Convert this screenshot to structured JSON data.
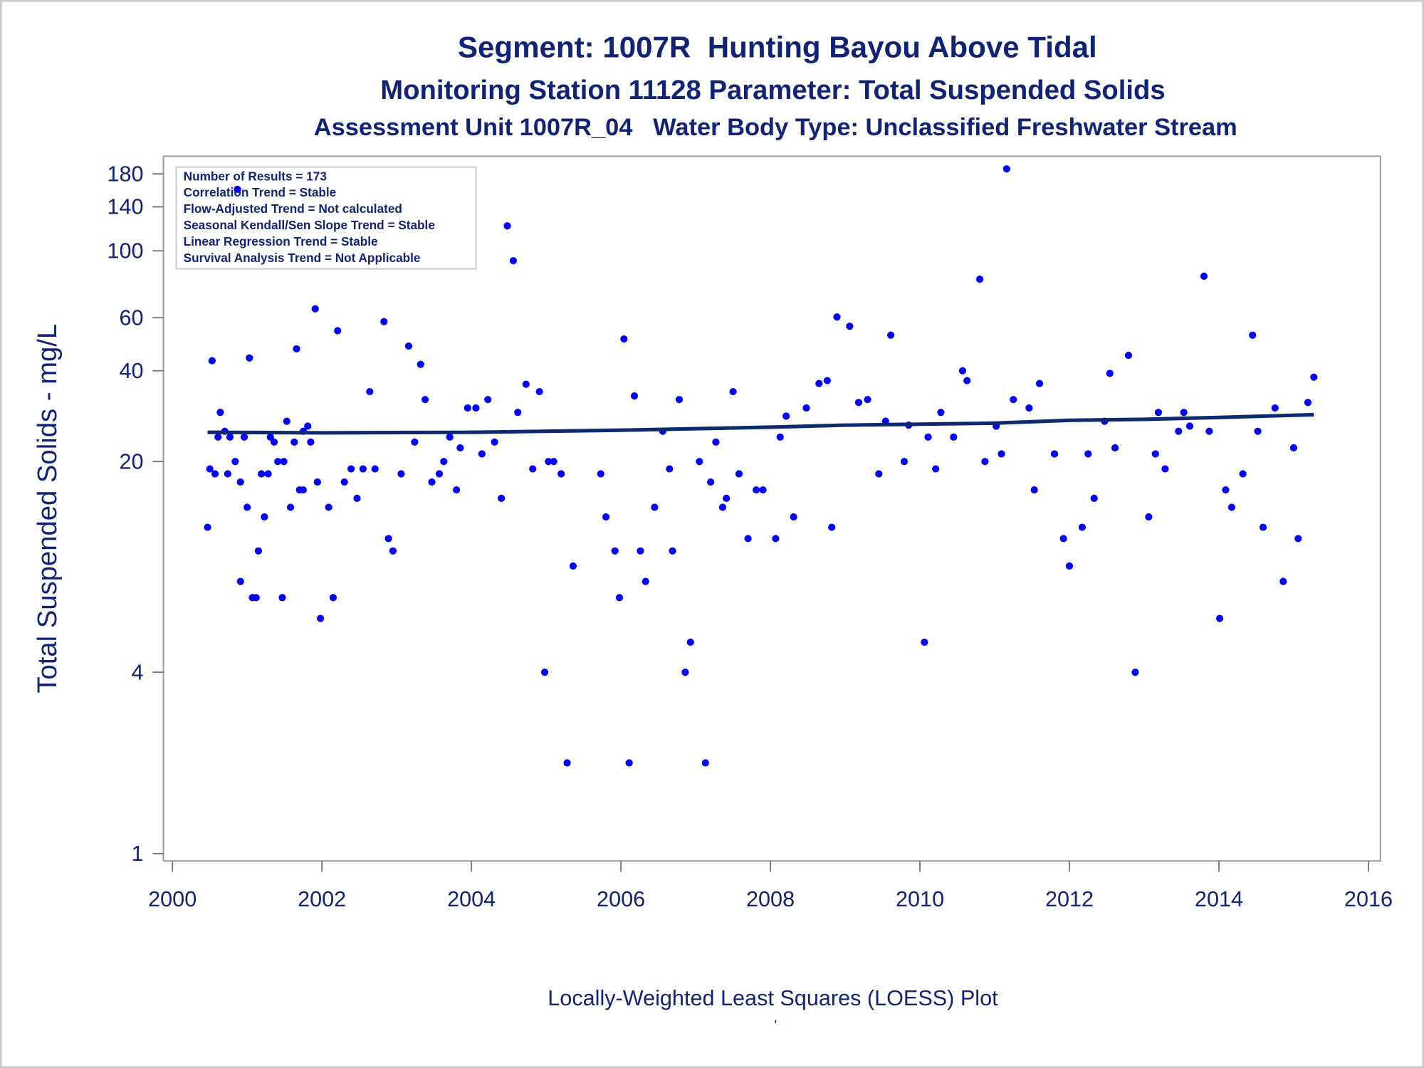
{
  "chart_data": {
    "type": "scatter",
    "title": "Segment: 1007R  Hunting Bayou Above Tidal",
    "subtitle": "Monitoring Station 11128 Parameter: Total Suspended Solids",
    "subtitle2": "Assessment Unit 1007R_04   Water Body Type: Unclassified Freshwater Stream",
    "annotations": [
      "Number of Results = 173",
      "Correlation Trend = Stable",
      "Flow-Adjusted Trend = Not calculated",
      "Seasonal Kendall/Sen Slope Trend = Stable",
      "Linear Regression Trend = Stable",
      "Survival Analysis Trend = Not Applicable"
    ],
    "y_label": "Total Suspended Solids - mg/L",
    "footnote": "Locally-Weighted Least Squares (LOESS) Plot",
    "footnote_mark": "'",
    "ylog": true,
    "grid": false,
    "xlim": [
      1999.88,
      2016.16
    ],
    "xticks": [
      2000,
      2002,
      2004,
      2006,
      2008,
      2010,
      2012,
      2014,
      2016
    ],
    "ylim": [
      0.946,
      206
    ],
    "yticks": [
      1,
      4,
      20,
      40,
      60,
      100,
      140,
      180
    ],
    "series": [
      {
        "type": "scatter",
        "color": "#0000ff",
        "x": [
          2000.47,
          2000.5,
          2000.53,
          2000.57,
          2000.61,
          2000.64,
          2000.7,
          2000.74,
          2000.77,
          2000.84,
          2000.87,
          2000.91,
          2000.91,
          2000.96,
          2001.0,
          2001.03,
          2001.07,
          2001.12,
          2001.15,
          2001.19,
          2001.23,
          2001.28,
          2001.31,
          2001.36,
          2001.41,
          2001.47,
          2001.49,
          2001.53,
          2001.58,
          2001.63,
          2001.66,
          2001.7,
          2001.75,
          2001.75,
          2001.81,
          2001.85,
          2001.91,
          2001.94,
          2001.98,
          2002.09,
          2002.15,
          2002.21,
          2002.3,
          2002.39,
          2002.47,
          2002.55,
          2002.64,
          2002.71,
          2002.83,
          2002.89,
          2002.95,
          2003.06,
          2003.16,
          2003.24,
          2003.32,
          2003.38,
          2003.47,
          2003.57,
          2003.63,
          2003.71,
          2003.8,
          2003.85,
          2003.95,
          2004.06,
          2004.14,
          2004.22,
          2004.31,
          2004.4,
          2004.48,
          2004.56,
          2004.62,
          2004.73,
          2004.82,
          2004.91,
          2004.98,
          2005.03,
          2005.1,
          2005.2,
          2005.28,
          2005.36,
          2005.73,
          2005.8,
          2005.92,
          2005.98,
          2006.04,
          2006.11,
          2006.18,
          2006.26,
          2006.33,
          2006.45,
          2006.56,
          2006.65,
          2006.69,
          2006.78,
          2006.86,
          2006.93,
          2007.05,
          2007.13,
          2007.2,
          2007.27,
          2007.36,
          2007.41,
          2007.5,
          2007.58,
          2007.7,
          2007.81,
          2007.9,
          2008.07,
          2008.13,
          2008.21,
          2008.31,
          2008.48,
          2008.65,
          2008.76,
          2008.82,
          2008.89,
          2009.06,
          2009.18,
          2009.3,
          2009.45,
          2009.54,
          2009.61,
          2009.79,
          2009.85,
          2010.06,
          2010.11,
          2010.21,
          2010.28,
          2010.45,
          2010.57,
          2010.63,
          2010.8,
          2010.87,
          2011.02,
          2011.09,
          2011.16,
          2011.25,
          2011.46,
          2011.53,
          2011.6,
          2011.8,
          2011.92,
          2012.0,
          2012.17,
          2012.25,
          2012.33,
          2012.47,
          2012.54,
          2012.61,
          2012.79,
          2012.88,
          2013.06,
          2013.15,
          2013.19,
          2013.28,
          2013.46,
          2013.53,
          2013.61,
          2013.8,
          2013.87,
          2014.01,
          2014.09,
          2014.17,
          2014.32,
          2014.45,
          2014.52,
          2014.59,
          2014.75,
          2014.86,
          2015.0,
          2015.06,
          2015.19,
          2015.27
        ],
        "values": [
          12.1,
          18.9,
          43.2,
          18.2,
          24.1,
          29.1,
          25.2,
          18.2,
          24.1,
          20,
          160,
          17.1,
          8.0,
          24.1,
          14.1,
          44.1,
          7.07,
          7.07,
          10.1,
          18.2,
          13.1,
          18.2,
          24.1,
          23.2,
          20,
          7.07,
          20,
          27.2,
          14.1,
          23.2,
          47.3,
          16.1,
          16.1,
          25.2,
          26.2,
          23.2,
          64.2,
          17.1,
          6.03,
          14.1,
          7.07,
          54.3,
          17.1,
          18.9,
          15.1,
          18.9,
          34.1,
          18.9,
          58.2,
          11.1,
          10.1,
          18.2,
          48.3,
          23.2,
          42.0,
          32.1,
          17.1,
          18.2,
          20,
          24.1,
          16.1,
          22.2,
          30.1,
          30.1,
          21.2,
          32.1,
          23.2,
          15.1,
          121,
          92.7,
          29.1,
          36.1,
          18.9,
          34.1,
          4,
          20,
          20,
          18.2,
          2.0,
          9.0,
          18.2,
          13.1,
          10.1,
          7.07,
          51.0,
          2.0,
          33.0,
          10.1,
          8.0,
          14.1,
          25.2,
          18.9,
          10.1,
          32.1,
          4,
          5.03,
          20,
          2.0,
          17.1,
          23.2,
          14.1,
          15.1,
          34.1,
          18.2,
          11.1,
          16.1,
          16.1,
          11.1,
          24.1,
          28.3,
          13.1,
          30.1,
          36.3,
          37.1,
          12.1,
          60.3,
          56.2,
          31.4,
          32.1,
          18.2,
          27.2,
          52.5,
          20,
          26.4,
          5.03,
          24.1,
          18.9,
          29.1,
          24.1,
          40,
          37.1,
          80.5,
          20,
          26.2,
          21.2,
          187,
          32.1,
          30.1,
          16.1,
          36.3,
          21.2,
          11.1,
          9.0,
          12.1,
          21.2,
          15.1,
          27.2,
          39.2,
          22.2,
          45.0,
          4,
          13.1,
          21.2,
          29.1,
          18.9,
          25.2,
          29.1,
          26.2,
          82.4,
          25.2,
          6.03,
          16.1,
          14.1,
          18.2,
          52.5,
          25.2,
          12.1,
          30.1,
          8.0,
          22.2,
          11.1,
          31.4,
          38.1
        ]
      },
      {
        "type": "line",
        "color": "#0d2a6e",
        "x": [
          2000.47,
          2002,
          2004,
          2005,
          2006,
          2007,
          2008,
          2009,
          2010,
          2011,
          2012,
          2013,
          2014,
          2015.27
        ],
        "values": [
          25.0,
          24.9,
          25.0,
          25.2,
          25.4,
          25.7,
          26.0,
          26.4,
          26.6,
          26.8,
          27.4,
          27.6,
          28.0,
          28.6
        ]
      }
    ]
  }
}
